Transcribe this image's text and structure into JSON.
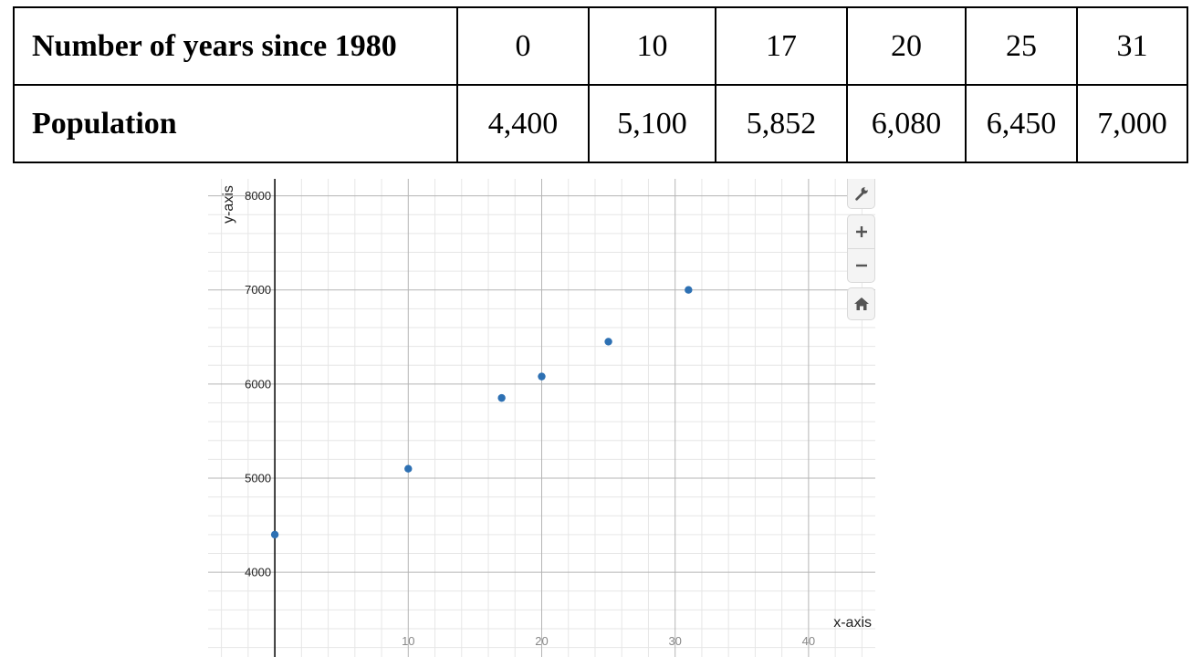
{
  "table": {
    "rows": [
      {
        "label": "Number of years since 1980",
        "cells": [
          "0",
          "10",
          "17",
          "20",
          "25",
          "31"
        ]
      },
      {
        "label": "Population",
        "cells": [
          "4,400",
          "5,100",
          "5,852",
          "6,080",
          "6,450",
          "7,000"
        ]
      }
    ]
  },
  "chart_data": {
    "type": "scatter",
    "title": "",
    "xlabel": "x-axis",
    "ylabel": "y-axis",
    "x": [
      0,
      10,
      17,
      20,
      25,
      31
    ],
    "y": [
      4400,
      5100,
      5852,
      6080,
      6450,
      7000
    ],
    "xlim": [
      -5,
      45
    ],
    "ylim": [
      3100,
      8180
    ],
    "x_ticks": [
      "10",
      "20",
      "30",
      "40"
    ],
    "x_tick_values": [
      10,
      20,
      30,
      40
    ],
    "y_ticks": [
      "4000",
      "5000",
      "6000",
      "7000",
      "8000"
    ],
    "y_tick_values": [
      4000,
      5000,
      6000,
      7000,
      8000
    ],
    "grid": true,
    "point_color": "#2d70b3",
    "major_grid_color": "#b5b5b5",
    "minor_grid_color": "#e6e6e6"
  },
  "toolbar": {
    "icons": [
      "wrench-icon",
      "plus-icon",
      "minus-icon",
      "home-icon"
    ]
  }
}
